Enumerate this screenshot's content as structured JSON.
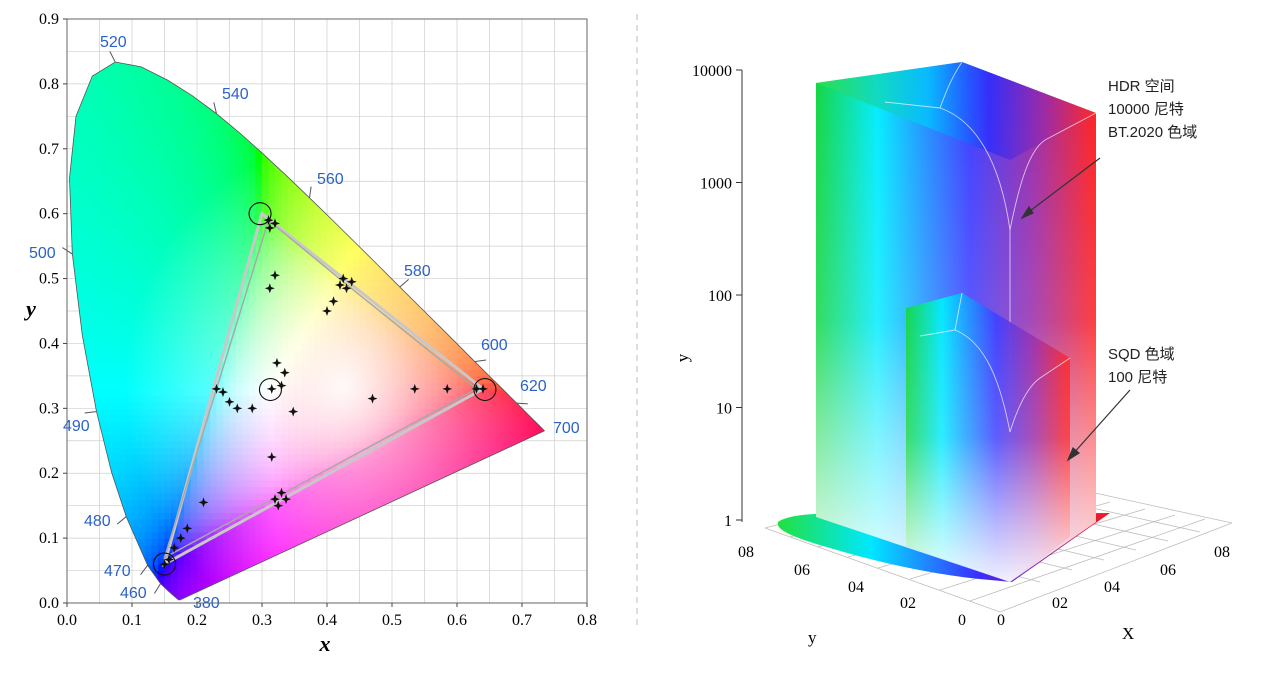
{
  "colors": {
    "wavelength_label": "#2a62c9",
    "grid": "#cfcfcf",
    "triangle": "#c8c8c8",
    "marker": "#111111",
    "divider": "#bdbdbd"
  },
  "chart_data": [
    {
      "type": "scatter",
      "name": "cie-1931-chromaticity",
      "title": "",
      "xlabel": "x",
      "ylabel": "y",
      "xlim": [
        0.0,
        0.8
      ],
      "ylim": [
        0.0,
        0.9
      ],
      "xticks": [
        "0.0",
        "0.1",
        "0.2",
        "0.3",
        "0.4",
        "0.5",
        "0.6",
        "0.7",
        "0.8"
      ],
      "yticks": [
        "0.0",
        "0.1",
        "0.2",
        "0.3",
        "0.4",
        "0.5",
        "0.6",
        "0.7",
        "0.8",
        "0.9"
      ],
      "grid": true,
      "wavelength_labels": [
        {
          "text": "520",
          "x": 0.074,
          "y": 0.834
        },
        {
          "text": "540",
          "x": 0.23,
          "y": 0.754
        },
        {
          "text": "560",
          "x": 0.373,
          "y": 0.624
        },
        {
          "text": "580",
          "x": 0.512,
          "y": 0.487
        },
        {
          "text": "600",
          "x": 0.627,
          "y": 0.372
        },
        {
          "text": "620",
          "x": 0.691,
          "y": 0.308
        },
        {
          "text": "700",
          "x": 0.735,
          "y": 0.265
        },
        {
          "text": "500",
          "x": 0.008,
          "y": 0.538
        },
        {
          "text": "490",
          "x": 0.045,
          "y": 0.295
        },
        {
          "text": "480",
          "x": 0.091,
          "y": 0.133
        },
        {
          "text": "470",
          "x": 0.124,
          "y": 0.059
        },
        {
          "text": "460",
          "x": 0.144,
          "y": 0.023
        },
        {
          "text": "380",
          "x": 0.175,
          "y": 0.005
        }
      ],
      "gamut_triangle": [
        [
          0.3,
          0.6
        ],
        [
          0.64,
          0.33
        ],
        [
          0.15,
          0.06
        ]
      ],
      "inner_triangle": [
        [
          0.31,
          0.59
        ],
        [
          0.425,
          0.495
        ],
        [
          0.63,
          0.33
        ],
        [
          0.15,
          0.07
        ],
        [
          0.23,
          0.33
        ]
      ],
      "circles": [
        [
          0.297,
          0.6
        ],
        [
          0.643,
          0.329
        ],
        [
          0.15,
          0.06
        ],
        [
          0.313,
          0.329
        ]
      ],
      "markers": [
        [
          0.31,
          0.59
        ],
        [
          0.32,
          0.585
        ],
        [
          0.312,
          0.578
        ],
        [
          0.425,
          0.5
        ],
        [
          0.43,
          0.485
        ],
        [
          0.438,
          0.495
        ],
        [
          0.42,
          0.49
        ],
        [
          0.63,
          0.33
        ],
        [
          0.64,
          0.33
        ],
        [
          0.585,
          0.33
        ],
        [
          0.535,
          0.33
        ],
        [
          0.47,
          0.315
        ],
        [
          0.15,
          0.06
        ],
        [
          0.157,
          0.067
        ],
        [
          0.165,
          0.085
        ],
        [
          0.175,
          0.1
        ],
        [
          0.185,
          0.115
        ],
        [
          0.21,
          0.155
        ],
        [
          0.23,
          0.33
        ],
        [
          0.24,
          0.325
        ],
        [
          0.25,
          0.31
        ],
        [
          0.262,
          0.3
        ],
        [
          0.285,
          0.3
        ],
        [
          0.315,
          0.33
        ],
        [
          0.33,
          0.335
        ],
        [
          0.348,
          0.295
        ],
        [
          0.323,
          0.37
        ],
        [
          0.335,
          0.355
        ],
        [
          0.32,
          0.505
        ],
        [
          0.312,
          0.485
        ],
        [
          0.4,
          0.45
        ],
        [
          0.41,
          0.465
        ],
        [
          0.315,
          0.225
        ],
        [
          0.33,
          0.17
        ],
        [
          0.32,
          0.16
        ],
        [
          0.337,
          0.16
        ],
        [
          0.325,
          0.15
        ]
      ]
    },
    {
      "type": "3d-volume",
      "name": "color-volume-comparison",
      "title": "",
      "zlabel": "y",
      "zscale": "log",
      "zticks": [
        "1",
        "10",
        "100",
        "1000",
        "10000"
      ],
      "left_axis_label": "y",
      "right_axis_label": "X",
      "left_axis_ticks": [
        "08",
        "06",
        "04",
        "02",
        "0"
      ],
      "right_axis_ticks": [
        "0",
        "02",
        "04",
        "06",
        "08"
      ],
      "series": [
        {
          "name": "HDR",
          "annotation": [
            "HDR 空间",
            "10000 尼特",
            "BT.2020 色域"
          ],
          "peak_nits": 10000,
          "gamut": "BT.2020"
        },
        {
          "name": "SQD",
          "annotation": [
            "SQD 色域",
            "100 尼特"
          ],
          "peak_nits": 100
        }
      ]
    }
  ]
}
